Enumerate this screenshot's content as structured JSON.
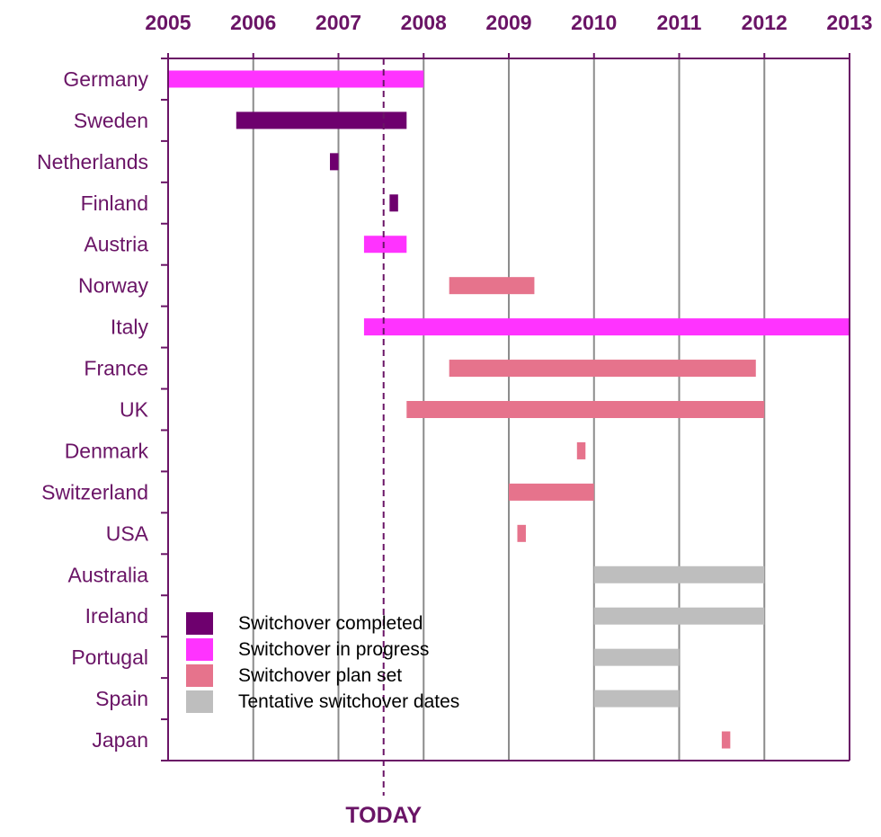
{
  "chart_data": {
    "type": "bar",
    "orientation": "horizontal-gantt",
    "x_axis": {
      "position": "top",
      "ticks": [
        "2005",
        "2006",
        "2007",
        "2008",
        "2009",
        "2010",
        "2011",
        "2012",
        "2013"
      ],
      "range": [
        2005,
        2013
      ]
    },
    "today": {
      "label": "TODAY",
      "year": 2007.53
    },
    "colors": {
      "completed": "#6e006e",
      "in_progress": "#ff33ff",
      "plan_set": "#e6738c",
      "tentative": "#bebebe",
      "axis": "#6a1466",
      "grid": "#8c8c8c"
    },
    "legend": {
      "placement": "bottom-left",
      "items": [
        {
          "key": "completed",
          "label": "Switchover completed"
        },
        {
          "key": "in_progress",
          "label": "Switchover in progress"
        },
        {
          "key": "plan_set",
          "label": "Switchover plan set"
        },
        {
          "key": "tentative",
          "label": "Tentative switchover dates"
        }
      ]
    },
    "rows": [
      {
        "country": "Germany",
        "start": 2005.0,
        "end": 2008.0,
        "status": "in_progress"
      },
      {
        "country": "Sweden",
        "start": 2005.8,
        "end": 2007.8,
        "status": "completed"
      },
      {
        "country": "Netherlands",
        "start": 2006.9,
        "end": 2007.0,
        "status": "completed"
      },
      {
        "country": "Finland",
        "start": 2007.6,
        "end": 2007.7,
        "status": "completed"
      },
      {
        "country": "Austria",
        "start": 2007.3,
        "end": 2007.8,
        "status": "in_progress"
      },
      {
        "country": "Norway",
        "start": 2008.3,
        "end": 2009.3,
        "status": "plan_set"
      },
      {
        "country": "Italy",
        "start": 2007.3,
        "end": 2013.0,
        "status": "in_progress"
      },
      {
        "country": "France",
        "start": 2008.3,
        "end": 2011.9,
        "status": "plan_set"
      },
      {
        "country": "UK",
        "start": 2007.8,
        "end": 2012.0,
        "status": "plan_set"
      },
      {
        "country": "Denmark",
        "start": 2009.8,
        "end": 2009.9,
        "status": "plan_set"
      },
      {
        "country": "Switzerland",
        "start": 2009.0,
        "end": 2010.0,
        "status": "plan_set"
      },
      {
        "country": "USA",
        "start": 2009.1,
        "end": 2009.2,
        "status": "plan_set"
      },
      {
        "country": "Australia",
        "start": 2010.0,
        "end": 2012.0,
        "status": "tentative"
      },
      {
        "country": "Ireland",
        "start": 2010.0,
        "end": 2012.0,
        "status": "tentative"
      },
      {
        "country": "Portugal",
        "start": 2010.0,
        "end": 2011.0,
        "status": "tentative"
      },
      {
        "country": "Spain",
        "start": 2010.0,
        "end": 2011.0,
        "status": "tentative"
      },
      {
        "country": "Japan",
        "start": 2011.5,
        "end": 2011.6,
        "status": "plan_set"
      }
    ]
  }
}
